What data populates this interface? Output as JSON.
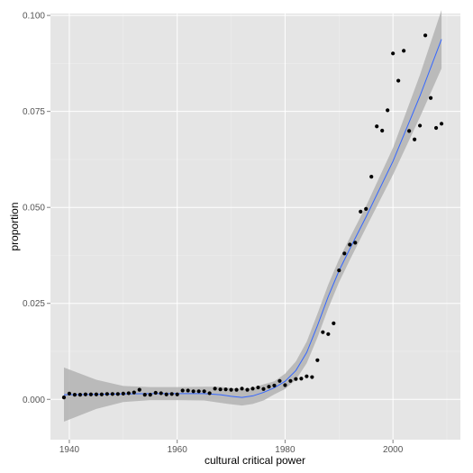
{
  "chart_data": {
    "type": "scatter",
    "title": "",
    "xlabel": "cultural critical power",
    "ylabel": "proportion",
    "xlim": [
      1936.5,
      2012.5
    ],
    "ylim": [
      -0.0105,
      0.1005
    ],
    "x_ticks": [
      1940,
      1960,
      1980,
      2000
    ],
    "x_tick_labels": [
      "1940",
      "1960",
      "1980",
      "2000"
    ],
    "y_ticks": [
      0.0,
      0.025,
      0.05,
      0.075,
      0.1
    ],
    "y_tick_labels": [
      "0.000",
      "0.025",
      "0.050",
      "0.075",
      "0.100"
    ],
    "grid": true,
    "colors": {
      "panel_background": "#e5e5e5",
      "grid_major": "#ffffff",
      "grid_minor": "#f0f0f0",
      "points": "#000000",
      "smooth_line": "#3366ff",
      "confidence_band": "#b3b3b3"
    },
    "series": [
      {
        "kind": "points",
        "x": [
          1939,
          1940,
          1941,
          1942,
          1943,
          1944,
          1945,
          1946,
          1947,
          1948,
          1949,
          1950,
          1951,
          1952,
          1953,
          1954,
          1955,
          1956,
          1957,
          1958,
          1959,
          1960,
          1961,
          1962,
          1963,
          1964,
          1965,
          1966,
          1967,
          1968,
          1969,
          1970,
          1971,
          1972,
          1973,
          1974,
          1975,
          1976,
          1977,
          1978,
          1979,
          1980,
          1981,
          1982,
          1983,
          1984,
          1985,
          1986,
          1987,
          1988,
          1989,
          1990,
          1991,
          1992,
          1993,
          1994,
          1995,
          1996,
          1997,
          1998,
          1999,
          2000,
          2001,
          2002,
          2003,
          2004,
          2005,
          2006,
          2007,
          2008,
          2009
        ],
        "y": [
          0.0005,
          0.0015,
          0.0012,
          0.0012,
          0.0013,
          0.0013,
          0.0013,
          0.0013,
          0.0014,
          0.0014,
          0.0014,
          0.0015,
          0.0016,
          0.0018,
          0.0025,
          0.0012,
          0.0012,
          0.0017,
          0.0016,
          0.0013,
          0.0014,
          0.0013,
          0.0023,
          0.0023,
          0.0021,
          0.0021,
          0.0021,
          0.0016,
          0.0028,
          0.0026,
          0.0026,
          0.0025,
          0.0025,
          0.0028,
          0.0025,
          0.0028,
          0.0031,
          0.0027,
          0.0033,
          0.0036,
          0.0048,
          0.0037,
          0.0048,
          0.0053,
          0.0054,
          0.006,
          0.0058,
          0.0102,
          0.0175,
          0.017,
          0.0198,
          0.0336,
          0.038,
          0.0403,
          0.0408,
          0.0489,
          0.0496,
          0.058,
          0.0711,
          0.07,
          0.0753,
          0.0901,
          0.083,
          0.0908,
          0.0699,
          0.0677,
          0.0713,
          0.0948,
          0.0785,
          0.0707,
          0.0718
        ]
      },
      {
        "kind": "smooth",
        "x": [
          1939,
          1945,
          1950,
          1955,
          1960,
          1965,
          1968,
          1970,
          1972,
          1974,
          1976,
          1978,
          1980,
          1982,
          1984,
          1986,
          1988,
          1990,
          1992,
          1995,
          2000,
          2005,
          2009
        ],
        "y": [
          0.0012,
          0.0013,
          0.0014,
          0.0015,
          0.0015,
          0.0015,
          0.0012,
          0.0008,
          0.0005,
          0.0009,
          0.0018,
          0.003,
          0.0047,
          0.0075,
          0.0122,
          0.0192,
          0.0268,
          0.0335,
          0.0392,
          0.0475,
          0.062,
          0.079,
          0.0938
        ],
        "ci_low": [
          -0.0058,
          -0.0025,
          -0.0007,
          -0.0002,
          -0.0002,
          -0.0003,
          -0.0009,
          -0.0013,
          -0.0016,
          -0.0012,
          -0.0003,
          0.0013,
          0.0027,
          0.0051,
          0.0094,
          0.0161,
          0.0237,
          0.0305,
          0.0363,
          0.0447,
          0.0585,
          0.0735,
          0.0862
        ],
        "ci_high": [
          0.0083,
          0.0051,
          0.0035,
          0.0032,
          0.0032,
          0.0033,
          0.0033,
          0.0029,
          0.0026,
          0.003,
          0.0039,
          0.0047,
          0.0067,
          0.0099,
          0.015,
          0.0223,
          0.0299,
          0.0365,
          0.0421,
          0.0503,
          0.0655,
          0.0845,
          0.1014
        ]
      }
    ]
  }
}
